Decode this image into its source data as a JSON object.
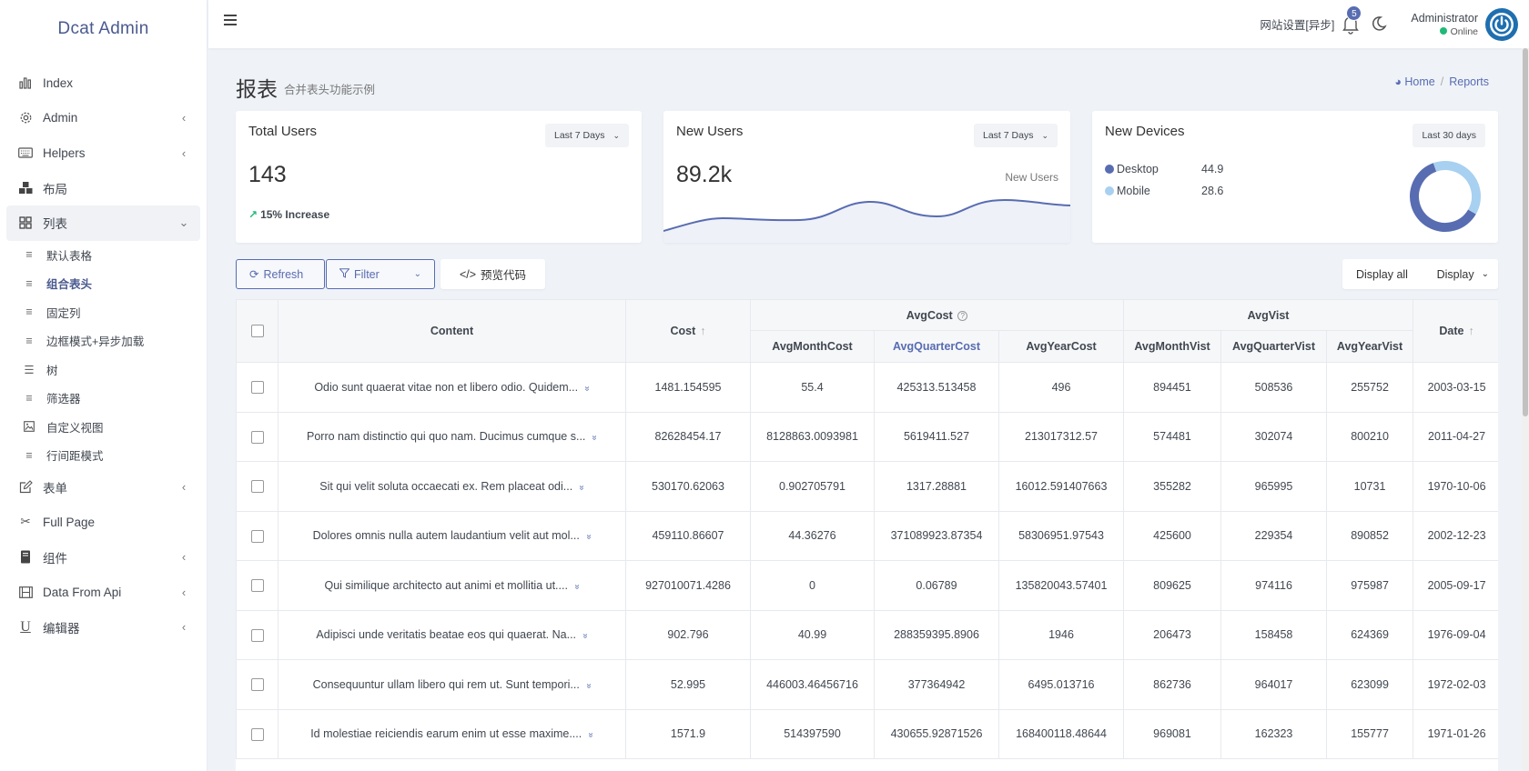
{
  "brand": "Dcat Admin",
  "sidebar": {
    "items": [
      {
        "label": "Index",
        "icon": "bar-chart-icon"
      },
      {
        "label": "Admin",
        "icon": "gear-icon"
      },
      {
        "label": "Helpers",
        "icon": "keyboard-icon"
      },
      {
        "label": "布局",
        "icon": "cubes-icon"
      },
      {
        "label": "列表",
        "icon": "grid-icon"
      },
      {
        "label": "表单",
        "icon": "edit-icon"
      },
      {
        "label": "Full Page",
        "icon": "scissors-icon"
      },
      {
        "label": "组件",
        "icon": "book-icon"
      },
      {
        "label": "Data From Api",
        "icon": "film-icon"
      },
      {
        "label": "编辑器",
        "icon": "underline-icon"
      }
    ],
    "sub_items": [
      {
        "label": "默认表格"
      },
      {
        "label": "组合表头"
      },
      {
        "label": "固定列"
      },
      {
        "label": "边框模式+异步加载"
      },
      {
        "label": "树"
      },
      {
        "label": "筛选器"
      },
      {
        "label": "自定义视图"
      },
      {
        "label": "行间距模式"
      }
    ]
  },
  "header": {
    "site_settings": "网站设置[异步]",
    "notifications": "5",
    "user_name": "Administrator",
    "user_status": "Online"
  },
  "page": {
    "title": "报表",
    "description": "合并表头功能示例",
    "breadcrumb_home": "Home",
    "breadcrumb_current": "Reports"
  },
  "cards": {
    "total_users": {
      "title": "Total Users",
      "dropdown": "Last 7 Days",
      "value": "143",
      "increase": "15% Increase"
    },
    "new_users": {
      "title": "New Users",
      "dropdown": "Last 7 Days",
      "value": "89.2k",
      "chart_label": "New Users"
    },
    "new_devices": {
      "title": "New Devices",
      "dropdown": "Last 30 days",
      "legend": [
        {
          "label": "Desktop",
          "value": "44.9",
          "color": "#586cb1"
        },
        {
          "label": "Mobile",
          "value": "28.6",
          "color": "#a8d0f0"
        }
      ]
    }
  },
  "toolbar": {
    "refresh": "Refresh",
    "filter": "Filter",
    "preview_code": "预览代码",
    "display_all": "Display all",
    "display": "Display"
  },
  "table": {
    "headers": {
      "content": "Content",
      "cost": "Cost",
      "avg_cost": "AvgCost",
      "avg_vist": "AvgVist",
      "date": "Date",
      "avg_month_cost": "AvgMonthCost",
      "avg_quarter_cost": "AvgQuarterCost",
      "avg_year_cost": "AvgYearCost",
      "avg_month_vist": "AvgMonthVist",
      "avg_quarter_vist": "AvgQuarterVist",
      "avg_year_vist": "AvgYearVist"
    },
    "rows": [
      [
        "Odio sunt quaerat vitae non et libero odio. Quidem...",
        "1481.154595",
        "55.4",
        "425313.513458",
        "496",
        "894451",
        "508536",
        "255752",
        "2003-03-15"
      ],
      [
        "Porro nam distinctio qui quo nam. Ducimus cumque s...",
        "82628454.17",
        "8128863.0093981",
        "5619411.527",
        "213017312.57",
        "574481",
        "302074",
        "800210",
        "2011-04-27"
      ],
      [
        "Sit qui velit soluta occaecati ex. Rem placeat odi...",
        "530170.62063",
        "0.902705791",
        "1317.28881",
        "16012.591407663",
        "355282",
        "965995",
        "10731",
        "1970-10-06"
      ],
      [
        "Dolores omnis nulla autem laudantium velit aut mol...",
        "459110.86607",
        "44.36276",
        "371089923.87354",
        "58306951.97543",
        "425600",
        "229354",
        "890852",
        "2002-12-23"
      ],
      [
        "Qui similique architecto aut animi et mollitia ut....",
        "927010071.4286",
        "0",
        "0.06789",
        "135820043.57401",
        "809625",
        "974116",
        "975987",
        "2005-09-17"
      ],
      [
        "Adipisci unde veritatis beatae eos qui quaerat. Na...",
        "902.796",
        "40.99",
        "288359395.8906",
        "1946",
        "206473",
        "158458",
        "624369",
        "1976-09-04"
      ],
      [
        "Consequuntur ullam libero qui rem ut. Sunt tempori...",
        "52.995",
        "446003.46456716",
        "377364942",
        "6495.013716",
        "862736",
        "964017",
        "623099",
        "1972-02-03"
      ],
      [
        "Id molestiae reiciendis earum enim ut esse maxime....",
        "1571.9",
        "514397590",
        "430655.92871526",
        "168400118.48644",
        "969081",
        "162323",
        "155777",
        "1971-01-26"
      ]
    ]
  }
}
